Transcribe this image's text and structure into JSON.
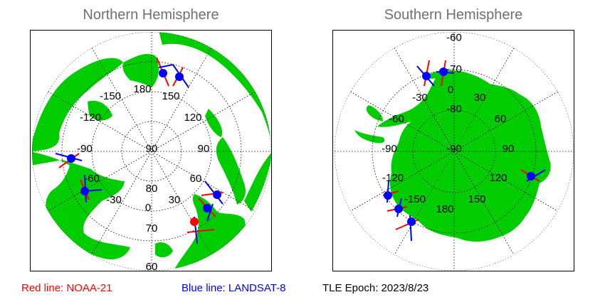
{
  "north": {
    "title": "Northern Hemisphere",
    "lon_labels": [
      {
        "text": "180"
      },
      {
        "text": "150"
      },
      {
        "text": "-150"
      },
      {
        "text": "120"
      },
      {
        "text": "-120"
      },
      {
        "text": "90"
      },
      {
        "text": "-90"
      },
      {
        "text": "60"
      },
      {
        "text": "-60"
      },
      {
        "text": "30"
      },
      {
        "text": "-30"
      },
      {
        "text": "0"
      }
    ],
    "lat_labels": [
      {
        "text": "90"
      },
      {
        "text": "80"
      },
      {
        "text": "70"
      },
      {
        "text": "60"
      }
    ]
  },
  "south": {
    "title": "Southern Hemisphere",
    "lon_labels": [
      {
        "text": "0"
      },
      {
        "text": "30"
      },
      {
        "text": "-30"
      },
      {
        "text": "60"
      },
      {
        "text": "-60"
      },
      {
        "text": "90"
      },
      {
        "text": "-90"
      },
      {
        "text": "120"
      },
      {
        "text": "-120"
      },
      {
        "text": "150"
      },
      {
        "text": "-150"
      },
      {
        "text": "180"
      }
    ],
    "lat_labels": [
      {
        "text": "-90"
      },
      {
        "text": "-80"
      },
      {
        "text": "-70"
      },
      {
        "text": "-60"
      }
    ]
  },
  "legend": {
    "red_label": "Red line: NOAA-21",
    "blue_label": "Blue line: LANDSAT-8",
    "epoch_label": "TLE Epoch: 2023/8/23"
  },
  "colors": {
    "land": "#00cc00",
    "red_track": "#ff0000",
    "blue_track": "#0000ff",
    "satellite": "#0000ff"
  }
}
